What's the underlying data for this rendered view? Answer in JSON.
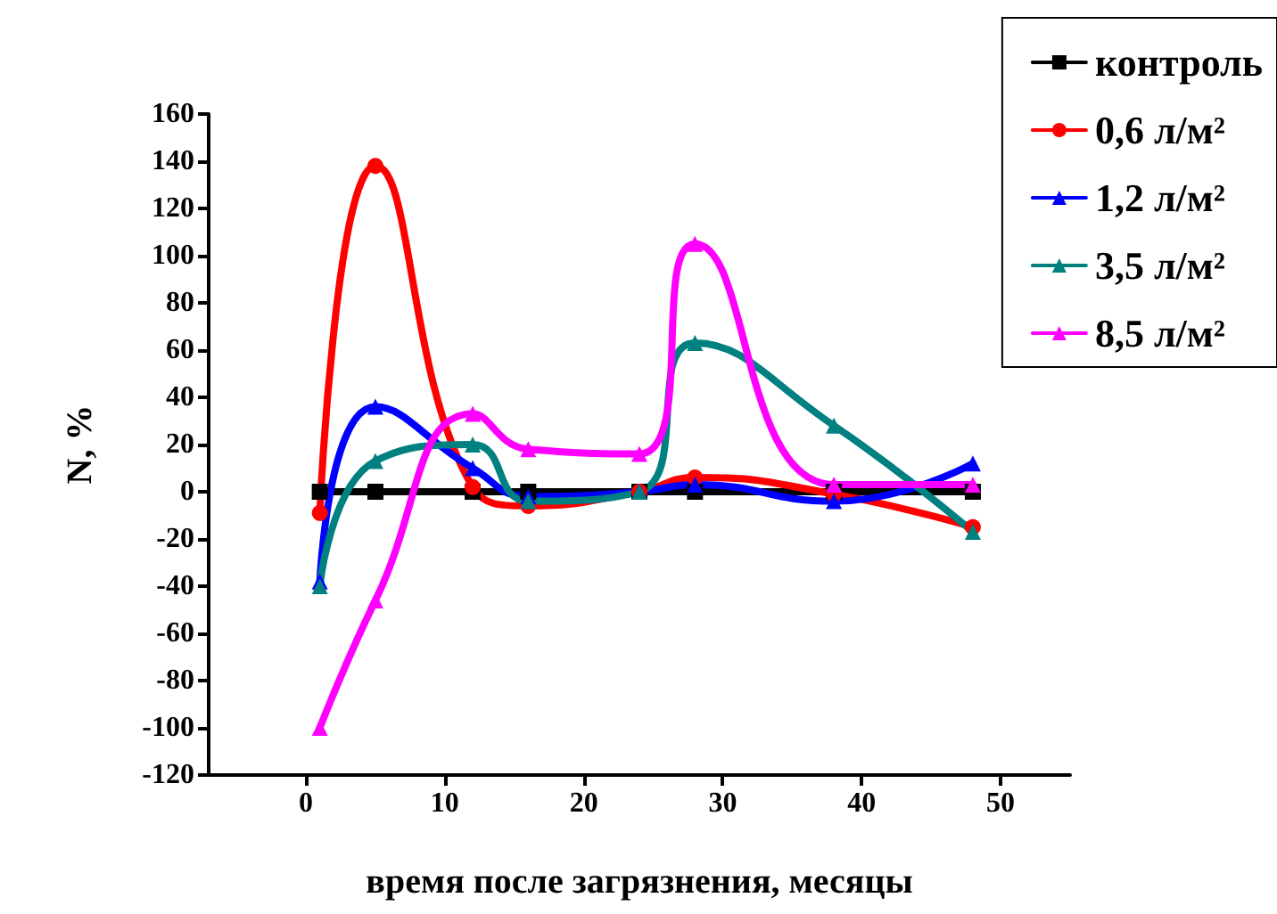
{
  "chart_data": {
    "type": "line",
    "xlabel": "время после загрязнения, месяцы",
    "ylabel": "N, %",
    "xlim": [
      -7,
      55
    ],
    "xticks": [
      0,
      10,
      20,
      30,
      40,
      50
    ],
    "ylim": [
      -120,
      160
    ],
    "yticks": [
      -120,
      -100,
      -80,
      -60,
      -40,
      -20,
      0,
      20,
      40,
      60,
      80,
      100,
      120,
      140,
      160
    ],
    "grid": false,
    "legend": "top right",
    "line_style": "solid",
    "series": [
      {
        "name": "контроль",
        "color": "#000000",
        "marker": "square",
        "x": [
          1,
          5,
          12,
          16,
          24,
          28,
          38,
          48
        ],
        "values": [
          0,
          0,
          0,
          0,
          0,
          0,
          0,
          0
        ]
      },
      {
        "name": "0,6 л/м²",
        "color": "#ff0000",
        "marker": "circle",
        "x": [
          1,
          5,
          12,
          16,
          24,
          28,
          38,
          48
        ],
        "values": [
          -9,
          138,
          2,
          -6,
          0,
          6,
          -1,
          -15
        ]
      },
      {
        "name": "1,2 л/м²",
        "color": "#0000ff",
        "marker": "triangle",
        "x": [
          1,
          5,
          12,
          16,
          24,
          28,
          38,
          48
        ],
        "values": [
          -38,
          36,
          10,
          -2,
          0,
          3,
          -4,
          12
        ]
      },
      {
        "name": "3,5 л/м²",
        "color": "#008080",
        "marker": "triangle",
        "x": [
          1,
          5,
          12,
          16,
          24,
          28,
          38,
          48
        ],
        "values": [
          -40,
          13,
          20,
          -4,
          0,
          63,
          28,
          -17
        ]
      },
      {
        "name": "8,5 л/м²",
        "color": "#ff00ff",
        "marker": "triangle",
        "x": [
          1,
          5,
          12,
          16,
          24,
          28,
          38,
          48
        ],
        "values": [
          -100,
          -46,
          33,
          18,
          16,
          105,
          3,
          3
        ]
      }
    ]
  }
}
